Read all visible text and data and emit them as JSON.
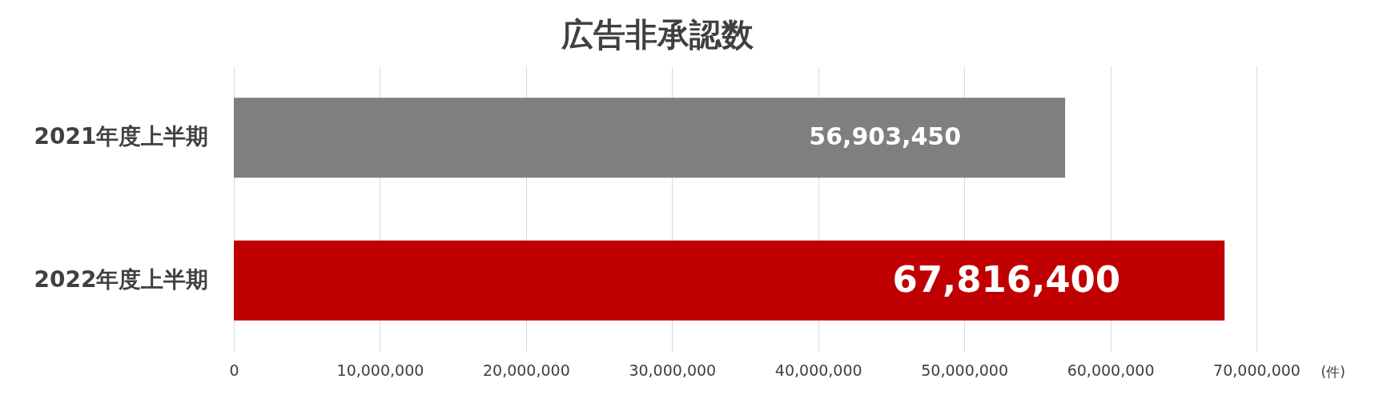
{
  "chart_data": {
    "type": "bar",
    "orientation": "horizontal",
    "title": "広告非承認数",
    "xlabel": "(件)",
    "categories": [
      "2021年度上半期",
      "2022年度上半期"
    ],
    "values": [
      56903450,
      67816400
    ],
    "colors": [
      "#7f7f7f",
      "#c00000"
    ],
    "value_labels": [
      "56,903,450",
      "67,816,400"
    ],
    "xlim": [
      0,
      70000000
    ],
    "xticks": [
      {
        "value": 0,
        "label": "0"
      },
      {
        "value": 10000000,
        "label": "10,000,000"
      },
      {
        "value": 20000000,
        "label": "20,000,000"
      },
      {
        "value": 30000000,
        "label": "30,000,000"
      },
      {
        "value": 40000000,
        "label": "40,000,000"
      },
      {
        "value": 50000000,
        "label": "50,000,000"
      },
      {
        "value": 60000000,
        "label": "60,000,000"
      },
      {
        "value": 70000000,
        "label": "70,000,000"
      }
    ],
    "grid": "x"
  }
}
